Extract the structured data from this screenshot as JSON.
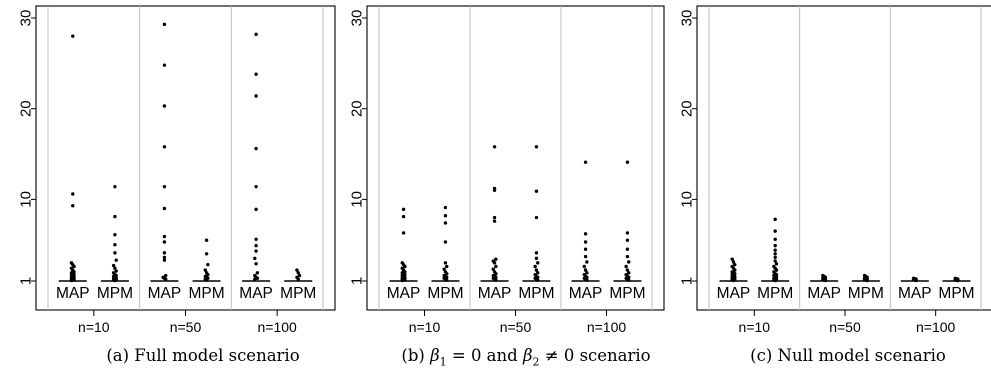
{
  "chart_data": [
    {
      "type": "scatter",
      "subtype": "stripchart / jittered dot plot with median markers",
      "caption": "(a) Full model scenario",
      "ylim": [
        0,
        31
      ],
      "yticks": [
        1,
        10,
        20,
        30
      ],
      "grid": "vertical separators between groups",
      "categories": [
        "MAP",
        "MPM",
        "MAP",
        "MPM",
        "MAP",
        "MPM"
      ],
      "groups": [
        "n=10",
        "n=50",
        "n=100"
      ],
      "median_marker": 1,
      "series": [
        {
          "group": "n=10",
          "method": "MAP",
          "outliers": [
            28.0,
            10.6,
            9.3,
            3.0,
            2.8,
            2.6,
            2.4,
            2.2,
            2.0,
            1.9,
            1.8,
            1.7,
            1.6,
            1.5,
            1.4,
            1.35,
            1.3,
            1.25,
            1.2,
            1.15,
            1.1,
            1.05
          ]
        },
        {
          "group": "n=10",
          "method": "MPM",
          "outliers": [
            11.4,
            8.1,
            6.1,
            5.0,
            4.1,
            3.3,
            2.7,
            2.4,
            2.1,
            1.9,
            1.7,
            1.6,
            1.5,
            1.4,
            1.3,
            1.25,
            1.2,
            1.15,
            1.1,
            1.05
          ]
        },
        {
          "group": "n=50",
          "method": "MAP",
          "outliers": [
            29.3,
            24.8,
            20.3,
            15.8,
            11.4,
            9.0,
            5.9,
            5.3,
            4.1,
            3.6,
            3.3,
            1.6,
            1.4,
            1.3,
            1.2
          ]
        },
        {
          "group": "n=50",
          "method": "MPM",
          "outliers": [
            5.5,
            4.0,
            2.8,
            2.2,
            1.9,
            1.7,
            1.5,
            1.4,
            1.3,
            1.2,
            1.1
          ]
        },
        {
          "group": "n=100",
          "method": "MAP",
          "outliers": [
            28.2,
            23.8,
            21.4,
            15.6,
            11.4,
            8.9,
            5.6,
            4.9,
            4.3,
            3.5,
            2.9,
            1.9,
            1.6,
            1.4,
            1.3,
            1.2
          ]
        },
        {
          "group": "n=100",
          "method": "MPM",
          "outliers": [
            2.2,
            1.9,
            1.6,
            1.4,
            1.2
          ]
        }
      ]
    },
    {
      "type": "scatter",
      "subtype": "stripchart / jittered dot plot with median markers",
      "caption_parts": [
        "(b) ",
        "β",
        "1",
        " = 0 and ",
        "β",
        "2",
        " ≠ 0 scenario"
      ],
      "ylim": [
        0,
        31
      ],
      "yticks": [
        1,
        10,
        20,
        30
      ],
      "grid": "vertical separators between groups",
      "categories": [
        "MAP",
        "MPM",
        "MAP",
        "MPM",
        "MAP",
        "MPM"
      ],
      "groups": [
        "n=10",
        "n=50",
        "n=100"
      ],
      "median_marker": 1,
      "series": [
        {
          "group": "n=10",
          "method": "MAP",
          "outliers": [
            8.9,
            8.1,
            6.3,
            3.0,
            2.8,
            2.6,
            2.4,
            2.2,
            2.0,
            1.9,
            1.8,
            1.7,
            1.6,
            1.5,
            1.4,
            1.35,
            1.3,
            1.25,
            1.2,
            1.15,
            1.1,
            1.05
          ]
        },
        {
          "group": "n=10",
          "method": "MPM",
          "outliers": [
            9.1,
            8.2,
            7.4,
            5.3,
            3.0,
            2.6,
            2.3,
            2.0,
            1.8,
            1.6,
            1.5,
            1.4,
            1.3,
            1.2,
            1.1
          ]
        },
        {
          "group": "n=50",
          "method": "MAP",
          "outliers": [
            15.8,
            11.2,
            11.0,
            8.0,
            7.6,
            3.4,
            3.2,
            3.0,
            2.6,
            2.3,
            2.0,
            1.8,
            1.6,
            1.5,
            1.4,
            1.3,
            1.2,
            1.1
          ]
        },
        {
          "group": "n=50",
          "method": "MPM",
          "outliers": [
            15.8,
            10.9,
            8.0,
            4.1,
            3.5,
            3.0,
            2.6,
            2.2,
            1.9,
            1.7,
            1.5,
            1.4,
            1.3,
            1.2,
            1.1
          ]
        },
        {
          "group": "n=100",
          "method": "MAP",
          "outliers": [
            14.1,
            6.2,
            5.3,
            4.5,
            3.7,
            3.1,
            2.6,
            2.2,
            1.9,
            1.7,
            1.5,
            1.4,
            1.3,
            1.2,
            1.1
          ]
        },
        {
          "group": "n=100",
          "method": "MPM",
          "outliers": [
            14.1,
            6.3,
            5.5,
            4.5,
            3.7,
            3.1,
            2.6,
            2.2,
            1.9,
            1.7,
            1.5,
            1.4,
            1.3,
            1.2,
            1.1
          ]
        }
      ]
    },
    {
      "type": "scatter",
      "subtype": "stripchart / jittered dot plot with median markers",
      "caption": "(c) Null model scenario",
      "ylim": [
        0,
        31
      ],
      "yticks": [
        1,
        10,
        20,
        30
      ],
      "grid": "vertical separators between groups",
      "categories": [
        "MAP",
        "MPM",
        "MAP",
        "MPM",
        "MAP",
        "MPM"
      ],
      "groups": [
        "n=10",
        "n=50",
        "n=100"
      ],
      "median_marker": 1,
      "series": [
        {
          "group": "n=10",
          "method": "MAP",
          "outliers": [
            3.4,
            3.1,
            2.8,
            2.6,
            2.4,
            2.2,
            2.0,
            1.9,
            1.8,
            1.7,
            1.6,
            1.5,
            1.4,
            1.35,
            1.3,
            1.25,
            1.2,
            1.15,
            1.1,
            1.05
          ]
        },
        {
          "group": "n=10",
          "method": "MPM",
          "outliers": [
            7.8,
            6.5,
            5.6,
            4.9,
            4.4,
            4.0,
            3.6,
            3.2,
            2.9,
            2.6,
            2.4,
            2.2,
            2.0,
            1.8,
            1.7,
            1.6,
            1.5,
            1.4,
            1.3,
            1.2,
            1.15,
            1.1,
            1.05
          ]
        },
        {
          "group": "n=50",
          "method": "MAP",
          "outliers": [
            1.6,
            1.5,
            1.4,
            1.3,
            1.25,
            1.2,
            1.15,
            1.1,
            1.05
          ]
        },
        {
          "group": "n=50",
          "method": "MPM",
          "outliers": [
            1.6,
            1.5,
            1.4,
            1.3,
            1.25,
            1.2,
            1.15,
            1.1,
            1.05
          ]
        },
        {
          "group": "n=100",
          "method": "MAP",
          "outliers": [
            1.3,
            1.25,
            1.2,
            1.15,
            1.1,
            1.05
          ]
        },
        {
          "group": "n=100",
          "method": "MPM",
          "outliers": [
            1.3,
            1.25,
            1.2,
            1.15,
            1.1,
            1.05
          ]
        }
      ]
    }
  ]
}
